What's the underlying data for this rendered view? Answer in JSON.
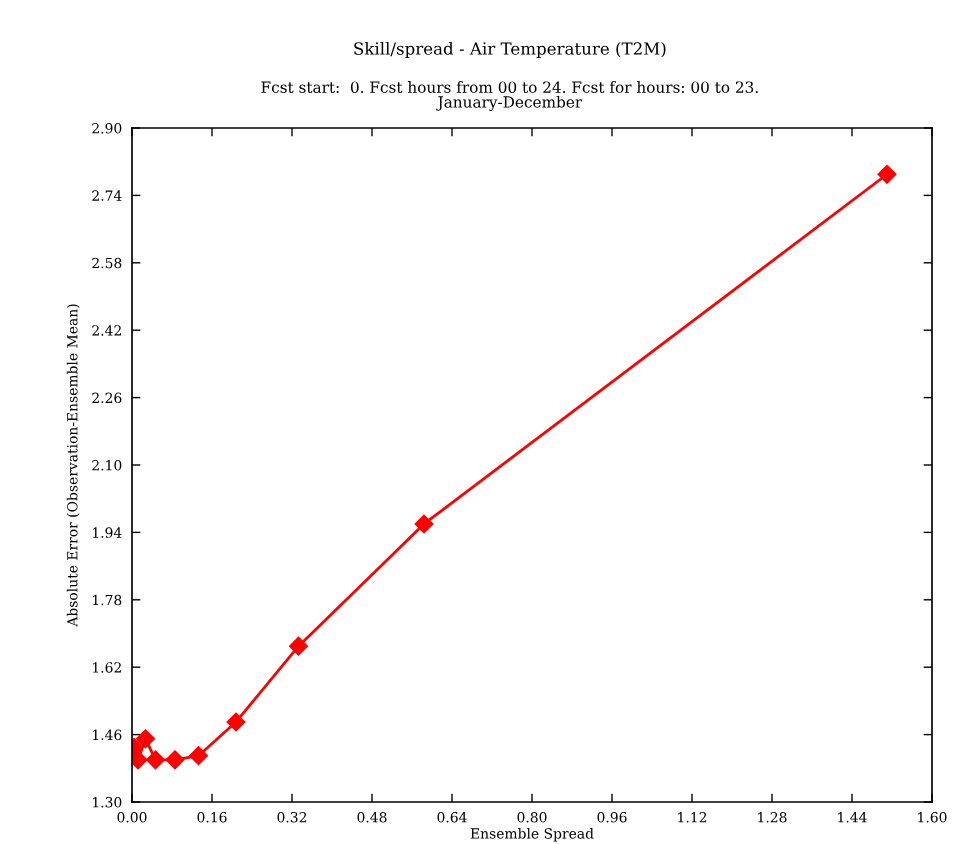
{
  "chart_data": {
    "type": "line",
    "title": "Skill/spread - Air Temperature (T2M)",
    "subtitle": "Fcst start:  0. Fcst hours from 00 to 24. Fcst for hours: 00 to 23.\nJanuary-December",
    "xlabel": "Ensemble Spread",
    "ylabel": "Absolute Error (Observation-Ensemble Mean)",
    "x": [
      0.004,
      0.012,
      0.027,
      0.047,
      0.086,
      0.133,
      0.208,
      0.333,
      0.584,
      1.51
    ],
    "series": [
      {
        "color": "#ff0000",
        "values": [
          1.43,
          1.4,
          1.45,
          1.4,
          1.4,
          1.41,
          1.49,
          1.67,
          1.96,
          2.79
        ]
      }
    ],
    "xlim": [
      0,
      1.6
    ],
    "ylim": [
      1.3,
      2.9
    ],
    "xticks": [
      {
        "value": 0,
        "label": "0.00"
      },
      {
        "value": 0.16,
        "label": "0.16"
      },
      {
        "value": 0.32,
        "label": "0.32"
      },
      {
        "value": 0.48,
        "label": "0.48"
      },
      {
        "value": 0.64,
        "label": "0.64"
      },
      {
        "value": 0.8,
        "label": "0.80"
      },
      {
        "value": 0.96,
        "label": "0.96"
      },
      {
        "value": 1.12,
        "label": "1.12"
      },
      {
        "value": 1.28,
        "label": "1.28"
      },
      {
        "value": 1.44,
        "label": "1.44"
      },
      {
        "value": 1.6,
        "label": "1.60"
      }
    ],
    "yticks": [
      {
        "value": 1.3,
        "label": "1.30"
      },
      {
        "value": 1.46,
        "label": "1.46"
      },
      {
        "value": 1.62,
        "label": "1.62"
      },
      {
        "value": 1.78,
        "label": "1.78"
      },
      {
        "value": 1.94,
        "label": "1.94"
      },
      {
        "value": 2.1,
        "label": "2.10"
      },
      {
        "value": 2.26,
        "label": "2.26"
      },
      {
        "value": 2.42,
        "label": "2.42"
      },
      {
        "value": 2.58,
        "label": "2.58"
      },
      {
        "value": 2.74,
        "label": "2.74"
      },
      {
        "value": 2.9,
        "label": "2.90"
      }
    ],
    "marker": "diamond",
    "line_style": "solid",
    "grid": false
  }
}
